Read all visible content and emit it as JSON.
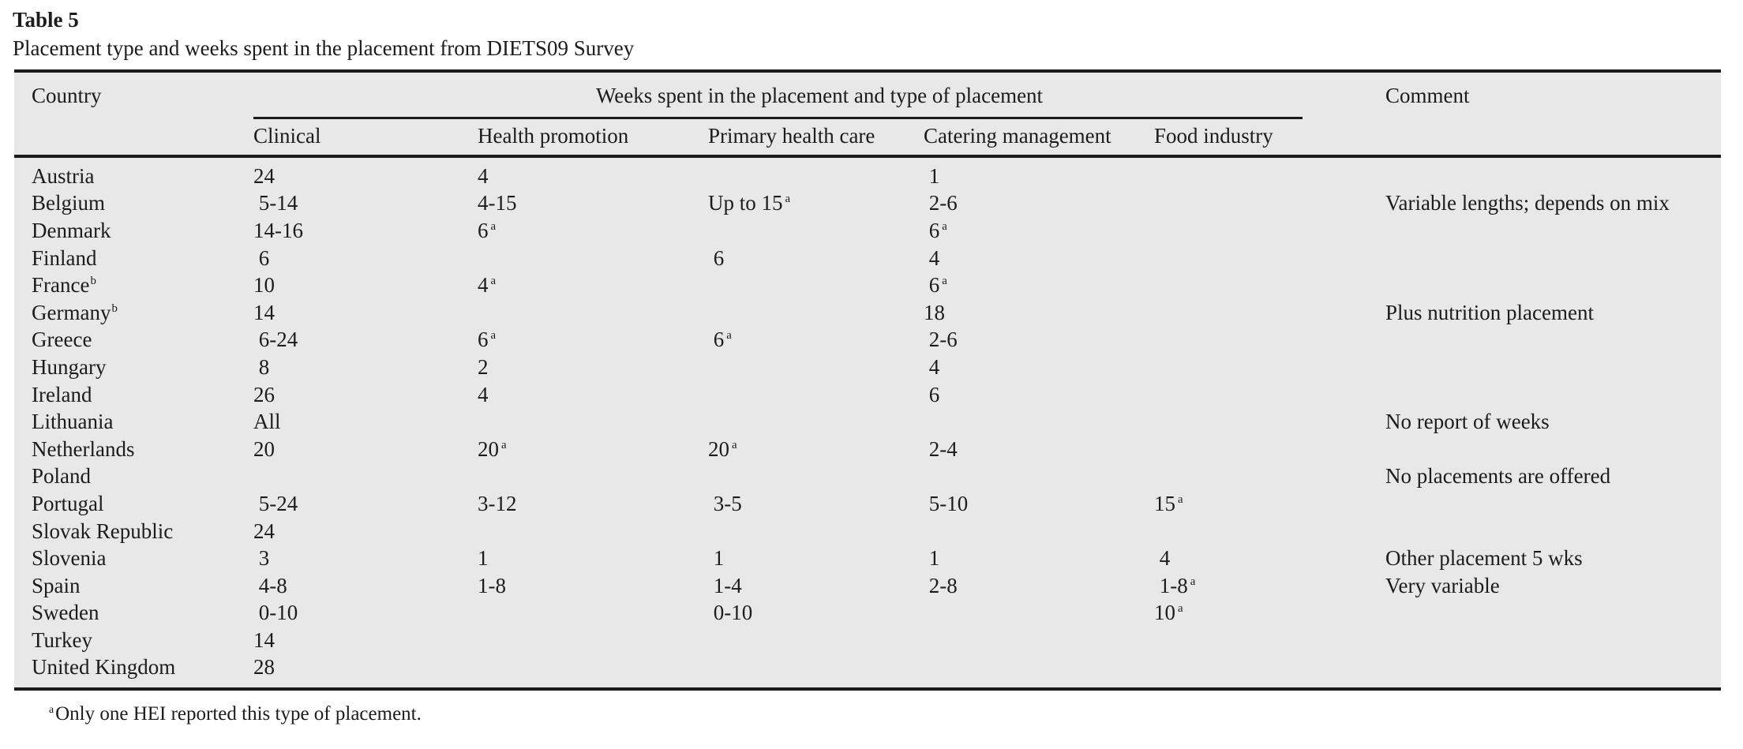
{
  "title": "Table 5",
  "subtitle": "Placement type and weeks spent in the placement from DIETS09 Survey",
  "colors": {
    "table_bg": "#e8e8e8",
    "text": "#1c1c1c",
    "rule": "#1a1a1a"
  },
  "table": {
    "header": {
      "country": "Country",
      "span": "Weeks spent in the placement and type of placement",
      "comment": "Comment",
      "columns": [
        "Clinical",
        "Health promotion",
        "Primary health care",
        "Catering management",
        "Food industry"
      ]
    },
    "rows": [
      {
        "country": "Austria",
        "clinical": "24",
        "health_promotion": "4",
        "primary_health_care": "",
        "catering_management": " 1",
        "food_industry": "",
        "comment": ""
      },
      {
        "country": "Belgium",
        "clinical": " 5-14",
        "health_promotion": "4-15",
        "primary_health_care": "Up to 15^a",
        "catering_management": " 2-6",
        "food_industry": "",
        "comment": "Variable lengths; depends on mix"
      },
      {
        "country": "Denmark",
        "clinical": "14-16",
        "health_promotion": "6^a",
        "primary_health_care": "",
        "catering_management": " 6^a",
        "food_industry": "",
        "comment": ""
      },
      {
        "country": "Finland",
        "clinical": " 6",
        "health_promotion": "",
        "primary_health_care": " 6",
        "catering_management": " 4",
        "food_industry": "",
        "comment": ""
      },
      {
        "country": "France^b",
        "clinical": "10",
        "health_promotion": "4^a",
        "primary_health_care": "",
        "catering_management": " 6^a",
        "food_industry": "",
        "comment": ""
      },
      {
        "country": "Germany^b",
        "clinical": "14",
        "health_promotion": "",
        "primary_health_care": "",
        "catering_management": "18",
        "food_industry": "",
        "comment": "Plus nutrition placement"
      },
      {
        "country": "Greece",
        "clinical": " 6-24",
        "health_promotion": "6^a",
        "primary_health_care": " 6^a",
        "catering_management": " 2-6",
        "food_industry": "",
        "comment": ""
      },
      {
        "country": "Hungary",
        "clinical": " 8",
        "health_promotion": "2",
        "primary_health_care": "",
        "catering_management": " 4",
        "food_industry": "",
        "comment": ""
      },
      {
        "country": "Ireland",
        "clinical": "26",
        "health_promotion": "4",
        "primary_health_care": "",
        "catering_management": " 6",
        "food_industry": "",
        "comment": ""
      },
      {
        "country": "Lithuania",
        "clinical": "All",
        "health_promotion": "",
        "primary_health_care": "",
        "catering_management": "",
        "food_industry": "",
        "comment": "No report of weeks"
      },
      {
        "country": "Netherlands",
        "clinical": "20",
        "health_promotion": "20^a",
        "primary_health_care": "20^a",
        "catering_management": " 2-4",
        "food_industry": "",
        "comment": ""
      },
      {
        "country": "Poland",
        "clinical": "",
        "health_promotion": "",
        "primary_health_care": "",
        "catering_management": "",
        "food_industry": "",
        "comment": "No placements are offered"
      },
      {
        "country": "Portugal",
        "clinical": " 5-24",
        "health_promotion": "3-12",
        "primary_health_care": " 3-5",
        "catering_management": " 5-10",
        "food_industry": "15^a",
        "comment": ""
      },
      {
        "country": "Slovak Republic",
        "clinical": "24",
        "health_promotion": "",
        "primary_health_care": "",
        "catering_management": "",
        "food_industry": "",
        "comment": ""
      },
      {
        "country": "Slovenia",
        "clinical": " 3",
        "health_promotion": "1",
        "primary_health_care": " 1",
        "catering_management": " 1",
        "food_industry": " 4",
        "comment": "Other placement 5 wks"
      },
      {
        "country": "Spain",
        "clinical": " 4-8",
        "health_promotion": "1-8",
        "primary_health_care": " 1-4",
        "catering_management": " 2-8",
        "food_industry": " 1-8^a",
        "comment": "Very variable"
      },
      {
        "country": "Sweden",
        "clinical": " 0-10",
        "health_promotion": "",
        "primary_health_care": " 0-10",
        "catering_management": "",
        "food_industry": "10^a",
        "comment": ""
      },
      {
        "country": "Turkey",
        "clinical": "14",
        "health_promotion": "",
        "primary_health_care": "",
        "catering_management": "",
        "food_industry": "",
        "comment": ""
      },
      {
        "country": "United Kingdom",
        "clinical": "28",
        "health_promotion": "",
        "primary_health_care": "",
        "catering_management": "",
        "food_industry": "",
        "comment": ""
      }
    ],
    "footnote_marker": "a",
    "footnote_text": "Only one HEI reported this type of placement."
  }
}
